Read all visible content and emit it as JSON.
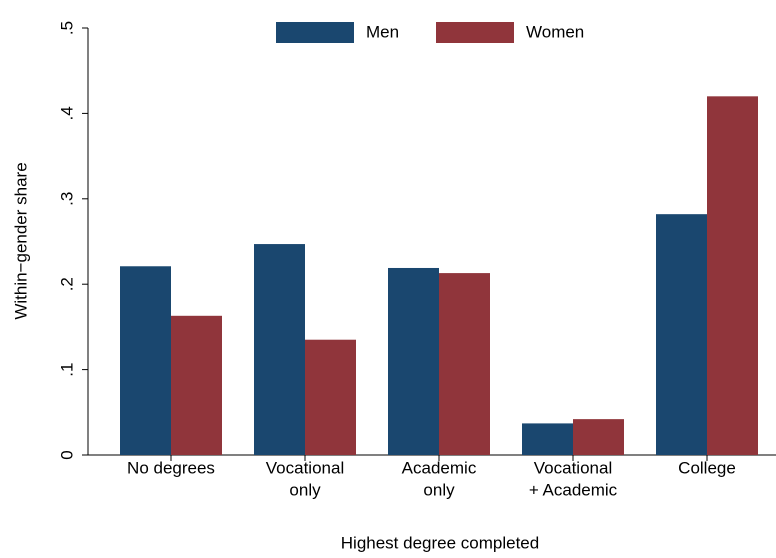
{
  "chart_data": {
    "type": "bar",
    "y_label": "Within−gender share",
    "x_label": "Highest degree completed",
    "categories": [
      [
        "No degrees"
      ],
      [
        "Vocational",
        "only"
      ],
      [
        "Academic",
        "only"
      ],
      [
        "Vocational",
        "+ Academic"
      ],
      [
        "College"
      ]
    ],
    "series": [
      {
        "name": "Men",
        "color": "#1a476f",
        "values": [
          0.221,
          0.247,
          0.219,
          0.037,
          0.282
        ]
      },
      {
        "name": "Women",
        "color": "#90353b",
        "values": [
          0.163,
          0.135,
          0.213,
          0.042,
          0.42
        ]
      }
    ],
    "ylim": [
      0,
      0.5
    ],
    "yticks": [
      0,
      {
        "value": 0.1,
        "label": ".1"
      },
      {
        "value": 0.2,
        "label": ".2"
      },
      {
        "value": 0.3,
        "label": ".3"
      },
      {
        "value": 0.4,
        "label": ".4"
      },
      {
        "value": 0.5,
        "label": ".5"
      }
    ],
    "legend": "top"
  }
}
